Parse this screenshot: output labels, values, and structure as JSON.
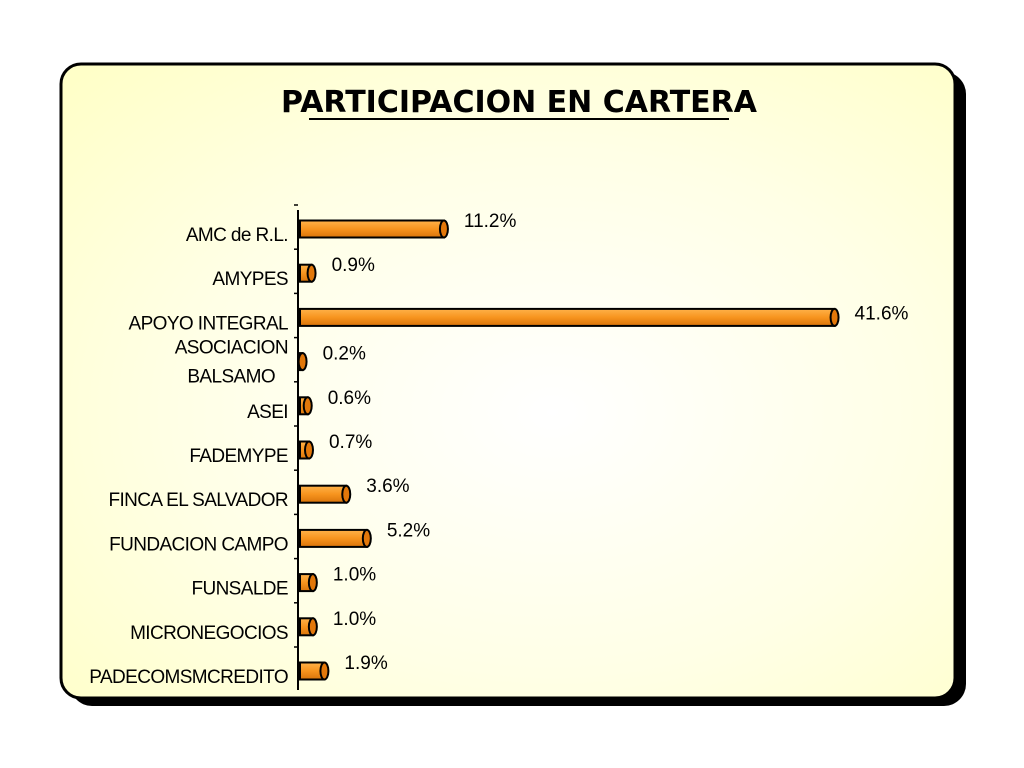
{
  "chart_data": {
    "type": "bar",
    "orientation": "horizontal",
    "title": "PARTICIPACION EN CARTERA",
    "categories": [
      "AMC de R.L.",
      "AMYPES",
      "APOYO INTEGRAL",
      "ASOCIACION BALSAMO",
      "ASEI",
      "FADEMYPE",
      "FINCA EL SALVADOR",
      "FUNDACION CAMPO",
      "FUNSALDE",
      "MICRONEGOCIOS",
      "PADECOMSMCREDITO"
    ],
    "values": [
      11.2,
      0.9,
      41.6,
      0.2,
      0.6,
      0.7,
      3.6,
      5.2,
      1.0,
      1.0,
      1.9
    ],
    "data_labels": [
      "11.2%",
      "0.9%",
      "41.6%",
      "0.2%",
      "0.6%",
      "0.7%",
      "3.6%",
      "5.2%",
      "1.0%",
      "1.0%",
      "1.9%"
    ],
    "xlabel": "",
    "ylabel": "",
    "grid": false,
    "legend": "none",
    "colors": {
      "bar": "#F7941E",
      "bar_end": "#E2770A",
      "outline": "#000000",
      "panel": "#FFFFCC",
      "frame_shadow": "#000000"
    }
  }
}
